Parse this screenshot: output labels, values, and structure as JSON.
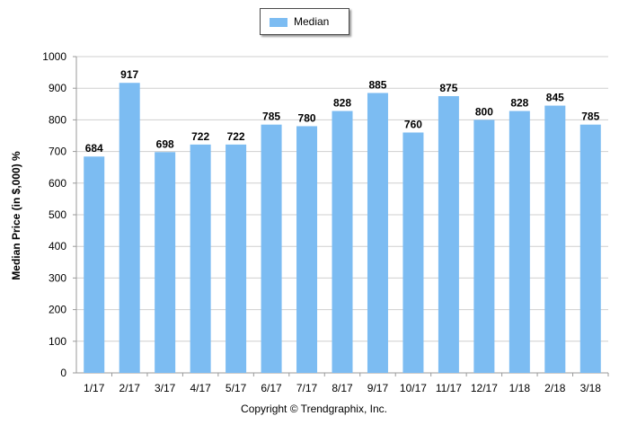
{
  "chart_data": {
    "type": "bar",
    "categories": [
      "1/17",
      "2/17",
      "3/17",
      "4/17",
      "5/17",
      "6/17",
      "7/17",
      "8/17",
      "9/17",
      "10/17",
      "11/17",
      "12/17",
      "1/18",
      "2/18",
      "3/18"
    ],
    "series": [
      {
        "name": "Median",
        "values": [
          684,
          917,
          698,
          722,
          722,
          785,
          780,
          828,
          885,
          760,
          875,
          800,
          828,
          845,
          785
        ]
      }
    ],
    "ylabel": "Median Price (in $,000) %",
    "xlabel": "",
    "ylim": [
      0,
      1000
    ],
    "yticks": [
      0,
      100,
      200,
      300,
      400,
      500,
      600,
      700,
      800,
      900,
      1000
    ],
    "grid": true,
    "legend": "top-center",
    "bar_color": "#7cbcf2",
    "footer": "Copyright © Trendgraphix, Inc."
  }
}
